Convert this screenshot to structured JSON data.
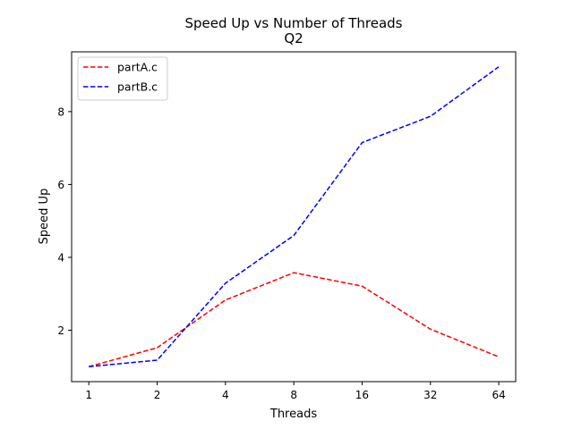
{
  "chart_data": {
    "type": "line",
    "title": "Speed Up vs Number of Threads",
    "subtitle": "Q2",
    "xlabel": "Threads",
    "ylabel": "Speed Up",
    "x_scale": "log2",
    "x": [
      1,
      2,
      4,
      8,
      16,
      32,
      64
    ],
    "x_tick_labels": [
      "1",
      "2",
      "4",
      "8",
      "16",
      "32",
      "64"
    ],
    "y_ticks": [
      2,
      4,
      6,
      8
    ],
    "y_tick_labels": [
      "2",
      "4",
      "6",
      "8"
    ],
    "xlim": [
      0.84,
      76
    ],
    "ylim": [
      0.59,
      9.64
    ],
    "grid": false,
    "legend_position": "upper left",
    "series": [
      {
        "name": "partA.c",
        "color": "#ff0000",
        "line_style": "dashed",
        "values": [
          1.0,
          1.52,
          2.83,
          3.58,
          3.21,
          2.03,
          1.27
        ]
      },
      {
        "name": "partB.c",
        "color": "#0000ff",
        "line_style": "dashed",
        "values": [
          1.0,
          1.18,
          3.29,
          4.6,
          7.15,
          7.87,
          9.23
        ]
      }
    ]
  }
}
